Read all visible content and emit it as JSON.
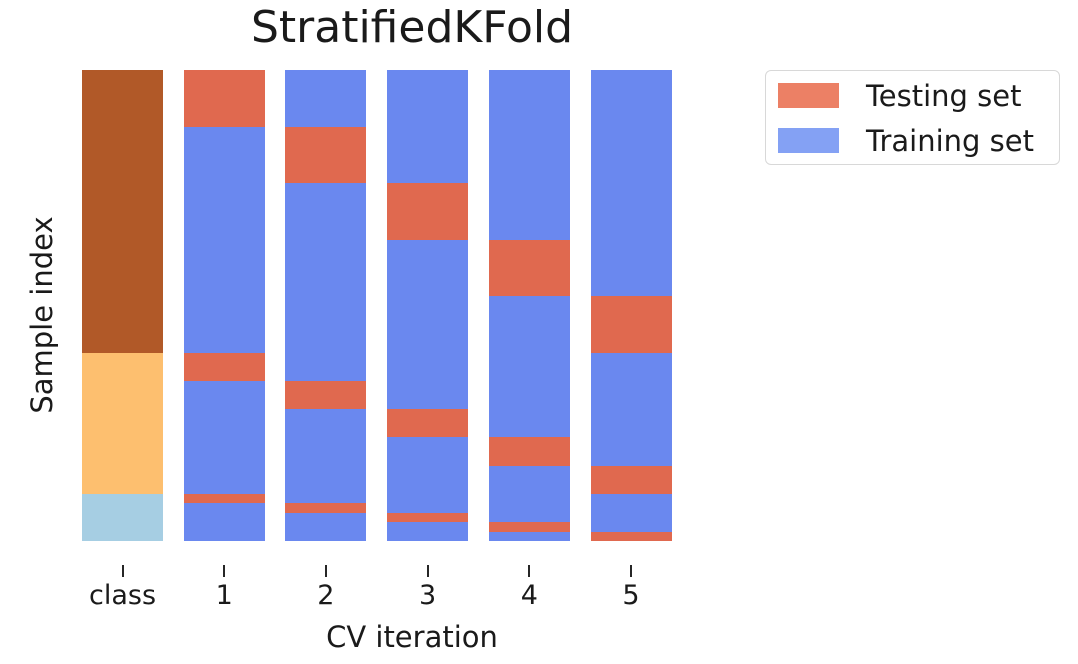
{
  "figure": {
    "title": "StratifiedKFold",
    "xlabel": "CV iteration",
    "ylabel": "Sample index"
  },
  "legend": {
    "items": [
      {
        "label": "Testing set",
        "color": "#ec8065"
      },
      {
        "label": "Training set",
        "color": "#84a1f4"
      }
    ]
  },
  "chart_data": {
    "type": "bar",
    "title": "StratifiedKFold",
    "xlabel": "CV iteration",
    "ylabel": "Sample index",
    "categories": [
      "class",
      "1",
      "2",
      "3",
      "4",
      "5"
    ],
    "n_folds": 5,
    "orientation": "vertical columns; sample index runs from top (0) to bottom (1) as fractions of column height",
    "colors": {
      "testing": "#e0694f",
      "training": "#6a88ef",
      "class_colors": [
        "#b15928",
        "#fdbf6f",
        "#a6cee3"
      ]
    },
    "class_column": {
      "label": "class",
      "segments": [
        {
          "name": "class-large",
          "color": "#b15928",
          "from": 0.0,
          "to": 0.6
        },
        {
          "name": "class-medium",
          "color": "#fdbf6f",
          "from": 0.6,
          "to": 0.9
        },
        {
          "name": "class-small",
          "color": "#a6cee3",
          "from": 0.9,
          "to": 1.0
        }
      ]
    },
    "cv_columns": [
      {
        "fold": "1",
        "test_segments": [
          [
            0.0,
            0.12
          ],
          [
            0.6,
            0.66
          ],
          [
            0.9,
            0.92
          ]
        ]
      },
      {
        "fold": "2",
        "test_segments": [
          [
            0.12,
            0.24
          ],
          [
            0.66,
            0.72
          ],
          [
            0.92,
            0.94
          ]
        ]
      },
      {
        "fold": "3",
        "test_segments": [
          [
            0.24,
            0.36
          ],
          [
            0.72,
            0.78
          ],
          [
            0.94,
            0.96
          ]
        ]
      },
      {
        "fold": "4",
        "test_segments": [
          [
            0.36,
            0.48
          ],
          [
            0.78,
            0.84
          ],
          [
            0.96,
            0.98
          ]
        ]
      },
      {
        "fold": "5",
        "test_segments": [
          [
            0.48,
            0.6
          ],
          [
            0.84,
            0.9
          ],
          [
            0.98,
            1.0
          ]
        ]
      }
    ],
    "legend_entries": [
      "Testing set",
      "Training set"
    ],
    "y_ticks": [],
    "grid": false
  }
}
